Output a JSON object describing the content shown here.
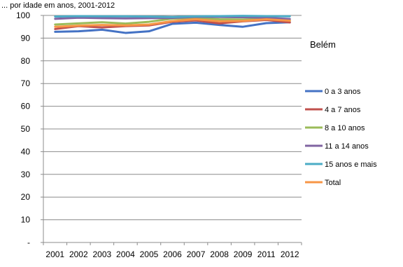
{
  "chart_data": {
    "type": "line",
    "title": "Belém",
    "header_fragment": "... por idade em anos, 2001-2012",
    "categories": [
      "2001",
      "2002",
      "2003",
      "2004",
      "2005",
      "2006",
      "2007",
      "2008",
      "2009",
      "2011",
      "2012"
    ],
    "ylim": [
      0,
      100
    ],
    "y_ticks": [
      "-",
      "10",
      "20",
      "30",
      "40",
      "50",
      "60",
      "70",
      "80",
      "90",
      "100"
    ],
    "grid": true,
    "legend_position": "right",
    "series": [
      {
        "name": "0 a 3 anos",
        "color": "#4472c4",
        "values": [
          92.8,
          93.0,
          93.7,
          92.3,
          93.0,
          96.3,
          96.8,
          95.8,
          95.0,
          96.6,
          97.0
        ]
      },
      {
        "name": "4 a 7 anos",
        "color": "#c0504d",
        "values": [
          94.0,
          95.3,
          94.7,
          95.3,
          95.6,
          97.2,
          97.8,
          96.5,
          97.4,
          98.0,
          96.9
        ]
      },
      {
        "name": "8 a 10 anos",
        "color": "#9bbb59",
        "values": [
          96.0,
          96.5,
          97.0,
          96.4,
          97.2,
          98.6,
          98.8,
          98.3,
          98.2,
          98.5,
          97.8
        ]
      },
      {
        "name": "11 a 14 anos",
        "color": "#8064a2",
        "values": [
          98.5,
          99.0,
          98.8,
          98.7,
          98.8,
          98.9,
          99.4,
          99.3,
          99.2,
          99.0,
          98.4
        ]
      },
      {
        "name": "15 anos e mais",
        "color": "#4bacc6",
        "values": [
          99.5,
          99.7,
          99.6,
          99.6,
          99.5,
          99.3,
          99.6,
          99.7,
          99.8,
          99.7,
          99.6
        ]
      },
      {
        "name": "Total",
        "color": "#f79646",
        "values": [
          95.0,
          95.5,
          95.8,
          95.6,
          96.0,
          97.5,
          98.3,
          97.4,
          97.6,
          98.3,
          97.7
        ]
      }
    ]
  }
}
